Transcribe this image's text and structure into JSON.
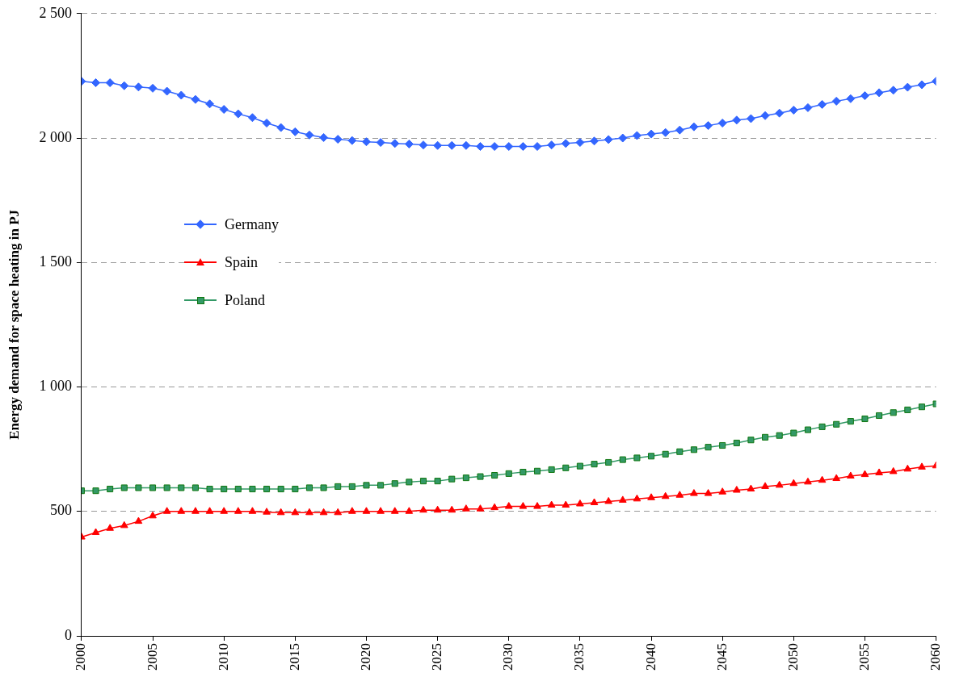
{
  "chart_data": {
    "type": "line",
    "ylabel": "Energy demand for space heating in PJ",
    "x": [
      2000,
      2001,
      2002,
      2003,
      2004,
      2005,
      2006,
      2007,
      2008,
      2009,
      2010,
      2011,
      2012,
      2013,
      2014,
      2015,
      2016,
      2017,
      2018,
      2019,
      2020,
      2021,
      2022,
      2023,
      2024,
      2025,
      2026,
      2027,
      2028,
      2029,
      2030,
      2031,
      2032,
      2033,
      2034,
      2035,
      2036,
      2037,
      2038,
      2039,
      2040,
      2041,
      2042,
      2043,
      2044,
      2045,
      2046,
      2047,
      2048,
      2049,
      2050,
      2051,
      2052,
      2053,
      2054,
      2055,
      2056,
      2057,
      2058,
      2059,
      2060
    ],
    "series": [
      {
        "name": "Germany",
        "color": "#3366ff",
        "marker": "diamond",
        "values": [
          2228,
          2222,
          2222,
          2210,
          2205,
          2200,
          2188,
          2172,
          2155,
          2137,
          2115,
          2097,
          2082,
          2060,
          2042,
          2025,
          2012,
          2002,
          1995,
          1990,
          1985,
          1982,
          1978,
          1976,
          1972,
          1970,
          1970,
          1970,
          1966,
          1966,
          1966,
          1966,
          1966,
          1972,
          1978,
          1982,
          1988,
          1994,
          2000,
          2010,
          2016,
          2022,
          2032,
          2045,
          2050,
          2060,
          2072,
          2078,
          2090,
          2100,
          2112,
          2122,
          2135,
          2148,
          2158,
          2170,
          2182,
          2192,
          2204,
          2214,
          2228
        ]
      },
      {
        "name": "Spain",
        "color": "#ff0000",
        "marker": "triangle",
        "values": [
          397,
          415,
          432,
          443,
          460,
          482,
          500,
          500,
          500,
          500,
          500,
          500,
          500,
          497,
          495,
          495,
          495,
          495,
          495,
          500,
          500,
          500,
          500,
          500,
          505,
          505,
          505,
          510,
          510,
          515,
          520,
          520,
          520,
          525,
          525,
          530,
          535,
          540,
          545,
          550,
          555,
          560,
          565,
          572,
          572,
          578,
          585,
          590,
          600,
          605,
          612,
          618,
          625,
          632,
          642,
          648,
          655,
          660,
          670,
          678,
          683
        ]
      },
      {
        "name": "Poland",
        "color": "#339966",
        "marker": "square",
        "values": [
          583,
          583,
          590,
          595,
          595,
          595,
          595,
          595,
          595,
          590,
          590,
          590,
          590,
          590,
          590,
          590,
          595,
          595,
          600,
          600,
          605,
          605,
          612,
          618,
          622,
          622,
          630,
          635,
          640,
          645,
          652,
          658,
          662,
          668,
          675,
          682,
          690,
          697,
          708,
          715,
          722,
          730,
          740,
          748,
          758,
          765,
          775,
          787,
          798,
          805,
          815,
          828,
          840,
          850,
          862,
          872,
          885,
          897,
          908,
          920,
          932
        ]
      }
    ],
    "xlim": [
      2000,
      2060
    ],
    "xticks": [
      2000,
      2005,
      2010,
      2015,
      2020,
      2025,
      2030,
      2035,
      2040,
      2045,
      2050,
      2055,
      2060
    ],
    "ylim": [
      0,
      2500
    ],
    "yticks": [
      0,
      500,
      {
        "value": 1000,
        "label": "1 000"
      },
      {
        "value": 1500,
        "label": "1 500"
      },
      {
        "value": 2000,
        "label": "2 000"
      },
      {
        "value": 2500,
        "label": "2 500"
      }
    ],
    "grid": "y",
    "legend": "left",
    "line_style": "solid"
  }
}
